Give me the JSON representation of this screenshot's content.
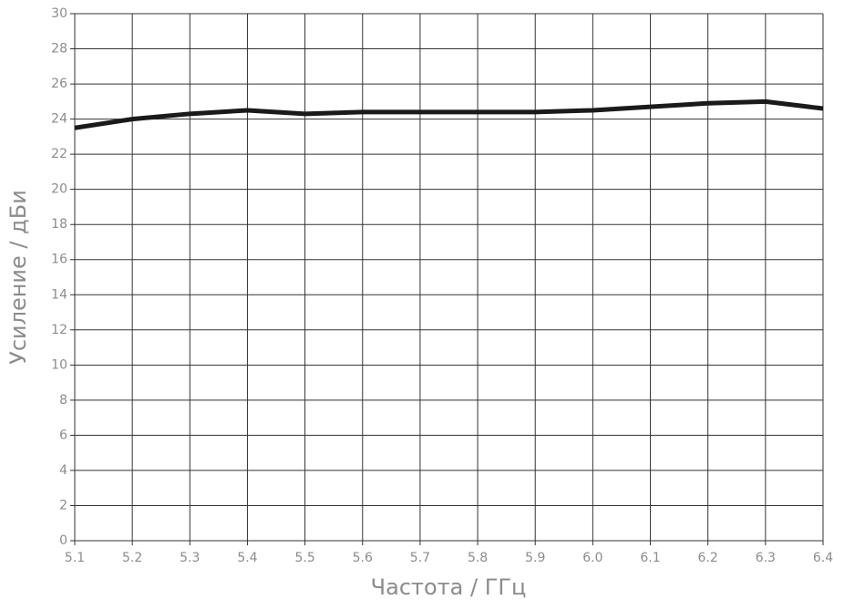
{
  "chart_data": {
    "type": "line",
    "x_label": "Частота / ГГц",
    "y_label": "Усиление / дБи",
    "x": [
      5.1,
      5.2,
      5.3,
      5.4,
      5.5,
      5.6,
      5.7,
      5.8,
      5.9,
      6.0,
      6.1,
      6.2,
      6.3,
      6.4
    ],
    "series": [
      {
        "color": "#1a1a1a",
        "values": [
          23.5,
          24.0,
          24.3,
          24.5,
          24.3,
          24.4,
          24.4,
          24.4,
          24.4,
          24.5,
          24.7,
          24.9,
          25.0,
          24.6
        ]
      }
    ],
    "xlim": [
      5.1,
      6.4
    ],
    "xticks": [
      5.1,
      5.2,
      5.3,
      5.4,
      5.5,
      5.6,
      5.7,
      5.8,
      5.9,
      {
        "value": 6,
        "label": "6.0"
      },
      6.1,
      6.2,
      6.3,
      6.4
    ],
    "ylim": [
      0,
      30
    ],
    "yticks": [
      0,
      2,
      4,
      6,
      8,
      10,
      12,
      14,
      16,
      18,
      20,
      22,
      24,
      26,
      28,
      30
    ],
    "grid": true
  }
}
